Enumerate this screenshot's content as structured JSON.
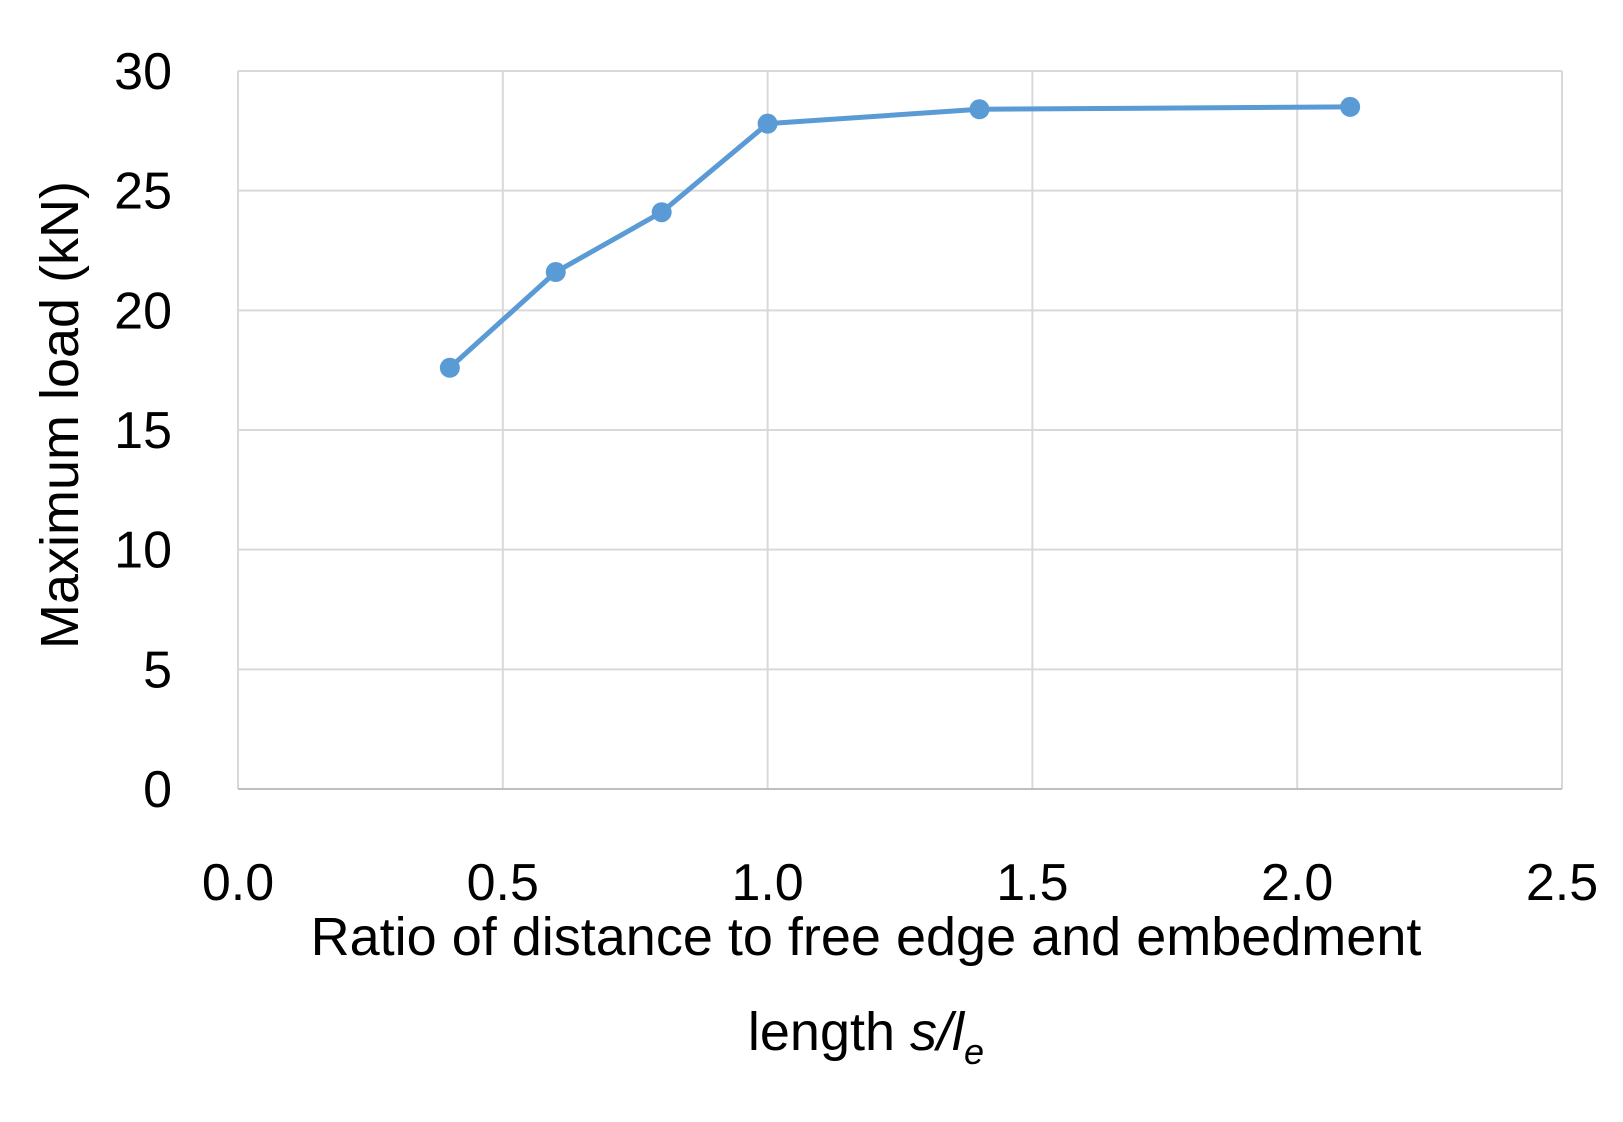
{
  "chart_data": {
    "type": "line",
    "title": "",
    "xlabel": {
      "line1": "Ratio of distance to free edge and embedment",
      "line2_prefix": "length ",
      "line2_symbol": "s/l",
      "line2_subscript": "e"
    },
    "ylabel": "Maximum load (kN)",
    "xlim": [
      0,
      2.5
    ],
    "ylim": [
      0,
      30
    ],
    "x_ticks": [
      0.0,
      0.5,
      1.0,
      1.5,
      2.0,
      2.5
    ],
    "x_tick_labels": [
      "0.0",
      "0.5",
      "1.0",
      "1.5",
      "2.0",
      "2.5"
    ],
    "y_ticks": [
      0,
      5,
      10,
      15,
      20,
      25,
      30
    ],
    "y_tick_labels": [
      "0",
      "5",
      "10",
      "15",
      "20",
      "25",
      "30"
    ],
    "grid": true,
    "series": [
      {
        "color": "#5b9bd5",
        "x": [
          0.4,
          0.6,
          0.8,
          1.0,
          1.4,
          2.1
        ],
        "y": [
          17.6,
          21.6,
          24.1,
          27.8,
          28.4,
          28.5
        ]
      }
    ]
  }
}
